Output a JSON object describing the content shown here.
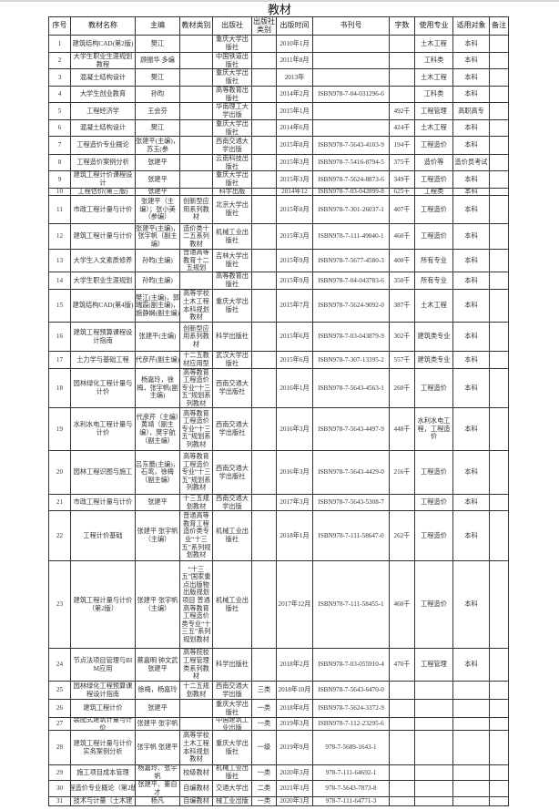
{
  "title": "教材",
  "headers": [
    "序号",
    "教材名称",
    "主编",
    "教材类别",
    "出版社",
    "出版社类别",
    "出版时间",
    "书刊号",
    "字数",
    "使用专业",
    "适用对象",
    "备注"
  ],
  "rows": [
    [
      "1",
      "建筑结构CAD(第2版)",
      "樊江",
      "",
      "重庆大学出版社",
      "",
      "2010年1月",
      "",
      "",
      "土木工程",
      "本科",
      ""
    ],
    [
      "2",
      "大学生职业生涯规划教程",
      "顾振华 多编",
      "",
      "中国铁道出版社",
      "",
      "2011年8月",
      "",
      "",
      "工科类",
      "本科",
      ""
    ],
    [
      "3",
      "混凝土结构设计",
      "樊江",
      "",
      "重庆大学出版社",
      "",
      "2013年",
      "",
      "",
      "土木工程",
      "本科",
      ""
    ],
    [
      "4",
      "大学生创业教育",
      "孙昀",
      "",
      "高等教育出版社",
      "",
      "2014年2月",
      "ISBN978-7-04-031296-6",
      "",
      "工科类",
      "本科",
      ""
    ],
    [
      "5",
      "工程经济学",
      "王会芬",
      "",
      "华南理工大学出版",
      "",
      "2015年1月",
      "",
      "492千",
      "工程管理",
      "高职高专",
      ""
    ],
    [
      "6",
      "混凝土结构设计",
      "樊江",
      "",
      "重庆大学出版社",
      "",
      "2014年6月",
      "",
      "424千",
      "土木工程",
      "本科",
      ""
    ],
    [
      "7",
      "工程造价专业概论",
      "张建平(主编)，苏玉(参",
      "",
      "西南交通大学出版",
      "",
      "2015年8月",
      "ISBN978-7-5643-4103-9",
      "194千",
      "工程造价",
      "本科",
      ""
    ],
    [
      "8",
      "工程造价案例分析",
      "张建平",
      "",
      "云南科技出版社",
      "",
      "2015年3月",
      "ISBN978-7-5416-8794-5",
      "375千",
      "造价等",
      "造价员考试",
      ""
    ],
    [
      "9",
      "建筑工程计价课程设计",
      "张建平",
      "",
      "重庆大学出版社",
      "",
      "2015年3月",
      "ISBN978-7-5624-8873-6",
      "349千",
      "工程造价",
      "本科",
      ""
    ],
    [
      "10",
      "工程估价(第三版)",
      "张建平",
      "",
      "科学出版",
      "",
      "2014年12",
      "ISBN978-7-03-042899-8",
      "625千",
      "工程类",
      "本科",
      ""
    ],
    [
      "11",
      "市政工程计量与计价",
      "张建平（主编）；张小美（参编）",
      "创新型应用系列教材",
      "北京大学出版社",
      "",
      "2015年8月",
      "ISBN978-7-301-26037-1",
      "407千",
      "工程造价",
      "本科",
      ""
    ],
    [
      "12",
      "建筑工程计量与计价",
      "张建平(主编)，张宇帆（副主编）",
      "造价类十二五系列教材",
      "机械工业出版社",
      "",
      "2015年3月",
      "ISBN978-7-111-49040-1",
      "460千",
      "工程造价",
      "本科",
      ""
    ],
    [
      "13",
      "大学生人文素质修养",
      "孙昀(主编)",
      "普通高等教育十二五规划",
      "吉林大学出版社",
      "",
      "2015年9月",
      "ISBN978-7-5677-4580-3",
      "400千",
      "所有专业",
      "本科",
      ""
    ],
    [
      "14",
      "大学生职业生涯规划",
      "孙昀(主编)",
      "",
      "高等教育出版社",
      "",
      "2015年9月",
      "ISBN978-7-04-043783-6",
      "350千",
      "所有专业",
      "本科",
      ""
    ],
    [
      "15",
      "建筑结构CAD(第4版)",
      "樊江(主编)，郭瑞霞(副主编)，施静娴(副主编)",
      "高等学校土木工程本科规划教材",
      "重庆大学出版社",
      "",
      "2015年7月",
      "ISBN978-7-5624-9092-0",
      "387千",
      "土木工程",
      "本科",
      ""
    ],
    [
      "16",
      "建筑工程预算课程设计指南",
      "张建平(主编)",
      "创新型应用系列教材",
      "科学出版社",
      "",
      "2015年6月",
      "ISBN978-7-03-043879-9",
      "302千",
      "建筑类专业",
      "本科",
      ""
    ],
    [
      "17",
      "土力学与基础工程",
      "代彦芹(副主编)",
      "十二五教材应用型",
      "武汉大学出版社",
      "",
      "2015年6月",
      "ISBN978-7-307-13395-2",
      "557千",
      "建筑类专业",
      "本科",
      ""
    ],
    [
      "18",
      "园林绿化工程计量与计价",
      "杨嘉玲，徐梅，张宇帆(副主编)",
      "高等教育工程造价专业“十三五”规划系列教材",
      "西南交通大学出版社",
      "",
      "2016年1月",
      "ISBN978-7-5643-4563-1",
      "260千",
      "工程造价",
      "本科",
      ""
    ],
    [
      "19",
      "水利水电工程计量与计价",
      "代彦芹（主编）黄靖（副主编），樊宇航（副主编）",
      "高等教育工程造价专业“十三五”规划系列教材",
      "西南交通大学出版社",
      "",
      "2016年3月",
      "ISBN978-7-5643-4497-9",
      "448千",
      "水利水电工程，工程造价",
      "本科",
      ""
    ],
    [
      "20",
      "园林工程识图与施工",
      "吕东蕾(主编)，石鸾，徐梅（副主编）",
      "高等教育工程造价专业“十三五”规划系列教材",
      "西南交通大学出版社",
      "",
      "2016年3月",
      "ISBN978-7-5643-4429-0",
      "216千",
      "工程造价",
      "本科",
      ""
    ],
    [
      "21",
      "市政工程计量与计价",
      "张建平",
      "十三五规划教材",
      "西南交通大学出版",
      "",
      "2017年3月",
      "ISBN978-7-5643-5308-7",
      "",
      "工程造价",
      "本科",
      ""
    ],
    [
      "22",
      "工程计价基础",
      "张建平 张宇帆（主编）",
      "普通高等教育工程造价类专业“十三五”系列规划教材",
      "机械工业出版社",
      "",
      "2018年1月",
      "ISBN978-7-111-58647-0",
      "262千",
      "工程造价",
      "本科",
      ""
    ],
    [
      "23",
      "建筑工程计量与计价（第2版）",
      "张建平 张宇帆（主编）",
      "“十三五”国家重点出版物出版规划项目 普通高等教育工程造价类专业“十三五”系列规划教材",
      "机械工业出版社",
      "",
      "2017年12月",
      "ISBN978-7-111-58455-1",
      "460千",
      "工程造价",
      "本科",
      ""
    ],
    [
      "24",
      "节点法项目管理与BIM应用",
      "蔡嘉明 钟文武 张建平",
      "高等院校工程管理类系列教材",
      "科学出版社",
      "",
      "2018年2月",
      "ISBN978-7-03-055910-4",
      "470千",
      "工程管理",
      "本科",
      ""
    ],
    [
      "25",
      "园林绿化工程预算课程设计指南",
      "徐梅，杨嘉玲",
      "十二五规划教材",
      "西南交通大学出版",
      "三类",
      "2018年10月",
      "ISBN978-7-5643-6470-0",
      "",
      "",
      "",
      ""
    ],
    [
      "26",
      "建筑工程计价",
      "张建平",
      "",
      "重庆大学出版社",
      "一类",
      "2018年8月",
      "ISBN978-7-5624-3372-9",
      "",
      "",
      "",
      ""
    ],
    [
      "27",
      "装配式建筑计量与计价",
      "张建平 张宇帆",
      "",
      "中国建筑工业出版",
      "一类",
      "2019年3月",
      "ISBN978-7-112-23295-6",
      "",
      "",
      "",
      ""
    ],
    [
      "28",
      "建筑工程计量与计价实务案例分析",
      "张宇帆 张建平",
      "高等学校土木工程本科规划教材",
      "重庆大学出版社",
      "一级",
      "2019年9月",
      "978-7-5689-1643-1",
      "",
      "",
      "",
      ""
    ],
    [
      "29",
      "施工项目成本管理",
      "杨嘉玲、张宇帆",
      "校级教材",
      "机械工业出版社",
      "一类",
      "2020年3月",
      "978-7-111-64692-1",
      "",
      "",
      "",
      ""
    ],
    [
      "30",
      "程造价专业概论（第2版",
      "张建平、董自才",
      "自编教材",
      "交通大学出",
      "二类",
      "2021年3月",
      "978-7-5643-7873-8",
      "",
      "",
      "",
      ""
    ],
    [
      "31",
      "技术与计量（土木建",
      "杨凡",
      "自编教材",
      "械工业出版",
      "一类",
      "2020年3月",
      "978-7-111-64771-3",
      "",
      "",
      "",
      ""
    ]
  ]
}
